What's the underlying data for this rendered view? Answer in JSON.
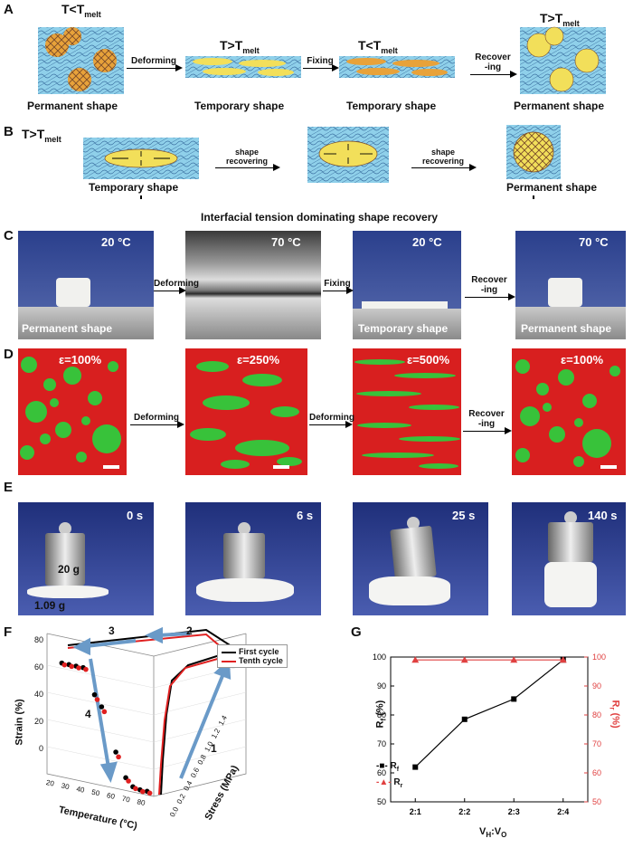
{
  "panels": {
    "A": {
      "label": "A",
      "states": [
        {
          "temp_base": "T<T",
          "temp_sub": "melt",
          "caption": "Permanent shape"
        },
        {
          "temp_base": "T>T",
          "temp_sub": "melt",
          "caption": "Temporary shape"
        },
        {
          "temp_base": "T<T",
          "temp_sub": "melt",
          "caption": "Temporary shape"
        },
        {
          "temp_base": "T>T",
          "temp_sub": "melt",
          "caption": "Permanent shape"
        }
      ],
      "arrows": [
        "Deforming",
        "Fixing",
        "Recover",
        "-ing"
      ]
    },
    "B": {
      "label": "B",
      "temp_base": "T>T",
      "temp_sub": "melt",
      "arrows": [
        "shape",
        "recovering",
        "shape",
        "recovering"
      ],
      "captions": [
        "Temporary shape",
        "Permanent shape"
      ],
      "bracket_label": "Interfacial tension dominating shape recovery"
    },
    "C": {
      "label": "C",
      "temps": [
        "20 °C",
        "70 °C",
        "20 °C",
        "70 °C"
      ],
      "captions": [
        "Permanent shape",
        "Temporary shape",
        "Permanent shape"
      ],
      "arrows": [
        "Deforming",
        "Fixing",
        "Recover",
        "-ing"
      ]
    },
    "D": {
      "label": "D",
      "strains": [
        "ε=100%",
        "ε=250%",
        "ε=500%",
        "ε=100%"
      ],
      "arrows": [
        "Deforming",
        "Deforming",
        "Recover",
        "-ing"
      ]
    },
    "E": {
      "label": "E",
      "times": [
        "0 s",
        "6 s",
        "25 s",
        "140 s"
      ],
      "weight_label": "20 g",
      "sample_label": "1.09 g"
    },
    "F": {
      "label": "F",
      "legend": [
        "First cycle",
        "Tenth cycle"
      ],
      "step_numbers": [
        "1",
        "2",
        "3",
        "4"
      ],
      "zlabel": "Strain (%)",
      "xlabel": "Temperature (°C)",
      "ylabel": "Stress (MPa)",
      "z_ticks": [
        "0",
        "20",
        "40",
        "60",
        "80"
      ],
      "x_ticks": [
        "20",
        "30",
        "40",
        "50",
        "60",
        "70",
        "80"
      ],
      "y_ticks": [
        "0.0",
        "0.2",
        "0.4",
        "0.6",
        "0.8",
        "1.0",
        "1.2",
        "1.4"
      ]
    },
    "G": {
      "label": "G",
      "left_ylabel": "R",
      "left_ylabel_sub": "f",
      "left_ylabel_unit": " (%)",
      "right_ylabel": "R",
      "right_ylabel_sub": "r",
      "right_ylabel_unit": " (%)",
      "xlabel_parts": [
        "V",
        "H",
        ":V",
        "O"
      ],
      "legend": [
        {
          "base": "R",
          "sub": "f"
        },
        {
          "base": "R",
          "sub": "r"
        }
      ]
    }
  },
  "colors": {
    "rf_series": "#000000",
    "rr_series": "#e04040",
    "first_cycle": "#000000",
    "tenth_cycle": "#e02020",
    "arrow_blue": "#6a9ac8"
  },
  "chart_data": [
    {
      "type": "line",
      "panel": "G",
      "categories": [
        "2:1",
        "2:2",
        "2:3",
        "2:4"
      ],
      "series": [
        {
          "name": "Rf",
          "axis": "left",
          "values": [
            62,
            78.5,
            85.5,
            99
          ]
        },
        {
          "name": "Rr",
          "axis": "right",
          "values": [
            99,
            99,
            99,
            99
          ]
        }
      ],
      "left_ylim": [
        50,
        100
      ],
      "right_ylim": [
        50,
        100
      ],
      "left_ticks": [
        "50",
        "60",
        "70",
        "80",
        "90",
        "100"
      ],
      "right_ticks": [
        "50",
        "60",
        "70",
        "80",
        "90",
        "100"
      ]
    },
    {
      "type": "scatter",
      "panel": "F",
      "series": [
        {
          "name": "First cycle",
          "temperature": [
            25,
            30,
            35,
            40,
            48,
            53,
            63,
            70,
            75,
            80,
            85
          ],
          "strain": [
            86,
            85,
            84,
            83,
            65,
            57,
            27,
            10,
            4,
            2,
            1
          ]
        },
        {
          "name": "Tenth cycle",
          "temperature": [
            25,
            30,
            35,
            40,
            48,
            53,
            63,
            70,
            75,
            80,
            85
          ],
          "strain": [
            86,
            85,
            84,
            83,
            63,
            55,
            25,
            9,
            4,
            2,
            1
          ]
        }
      ]
    }
  ]
}
